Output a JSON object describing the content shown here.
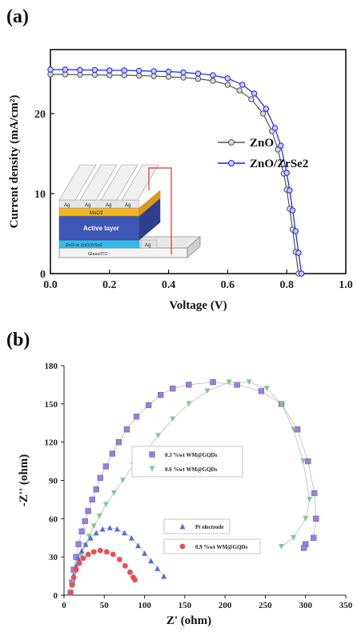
{
  "panel_a_label": "(a)",
  "panel_b_label": "(b)",
  "colors": {
    "zno": "#555555",
    "znozrse2": "#1a1aff",
    "purple": "#9a7fd8",
    "green": "#7ec98a",
    "blue": "#4a6fe0",
    "red": "#e85050"
  },
  "inset": {
    "ag": "Ag",
    "moo3": "MoO3",
    "active": "Active layer",
    "etl": "ZnO or ZnO/ZrSe2",
    "glass": "Glass/ITO"
  },
  "chart_data": [
    {
      "type": "line",
      "xlabel": "Voltage (V)",
      "ylabel": "Current density (mA/cm²)",
      "xlim": [
        0.0,
        1.0
      ],
      "ylim": [
        0,
        28
      ],
      "xticks": [
        "0.0",
        "0.2",
        "0.4",
        "0.6",
        "0.8",
        "1.0"
      ],
      "yticks": [
        "0",
        "10",
        "20"
      ],
      "series": [
        {
          "name": "ZnO",
          "color": "#555555",
          "x": [
            0.0,
            0.05,
            0.1,
            0.15,
            0.2,
            0.25,
            0.3,
            0.35,
            0.4,
            0.45,
            0.5,
            0.55,
            0.6,
            0.64,
            0.68,
            0.72,
            0.75,
            0.77,
            0.79,
            0.8,
            0.81,
            0.82,
            0.83,
            0.84
          ],
          "y": [
            24.9,
            24.9,
            24.85,
            24.85,
            24.8,
            24.8,
            24.75,
            24.7,
            24.6,
            24.5,
            24.35,
            24.1,
            23.6,
            22.9,
            21.8,
            20.0,
            17.8,
            15.5,
            12.5,
            10.5,
            8.1,
            5.5,
            2.7,
            0.0
          ]
        },
        {
          "name": "ZnO/ZrSe2",
          "color": "#1a1aff",
          "x": [
            0.0,
            0.05,
            0.1,
            0.15,
            0.2,
            0.25,
            0.3,
            0.35,
            0.4,
            0.45,
            0.5,
            0.55,
            0.6,
            0.65,
            0.69,
            0.73,
            0.76,
            0.78,
            0.8,
            0.81,
            0.82,
            0.83,
            0.84,
            0.85
          ],
          "y": [
            25.5,
            25.5,
            25.45,
            25.45,
            25.4,
            25.4,
            25.35,
            25.3,
            25.25,
            25.15,
            25.0,
            24.8,
            24.4,
            23.6,
            22.5,
            20.6,
            18.2,
            16.0,
            12.6,
            10.4,
            7.9,
            5.3,
            2.6,
            0.0
          ]
        }
      ],
      "legend": "upper-middle-right"
    },
    {
      "type": "scatter",
      "xlabel": "Z' (ohm)",
      "ylabel": "-Z'' (ohm)",
      "xlim": [
        0,
        350
      ],
      "ylim": [
        0,
        180
      ],
      "xticks": [
        "0",
        "50",
        "100",
        "150",
        "200",
        "250",
        "300",
        "350"
      ],
      "yticks": [
        "0",
        "30",
        "60",
        "90",
        "120",
        "150",
        "180"
      ],
      "series": [
        {
          "name": "0.3 %wt WM@GQDs",
          "color": "#9a7fd8",
          "marker": "square",
          "x": [
            8,
            10,
            12,
            15,
            18,
            22,
            26,
            30,
            35,
            40,
            45,
            52,
            60,
            68,
            78,
            90,
            105,
            120,
            135,
            155,
            185,
            215,
            245,
            270,
            290,
            303,
            311,
            313,
            310,
            300,
            298
          ],
          "y": [
            2,
            10,
            20,
            30,
            40,
            50,
            58,
            66,
            75,
            83,
            92,
            101,
            111,
            120,
            130,
            140,
            149,
            157,
            162,
            165,
            167,
            165,
            160,
            150,
            130,
            105,
            80,
            60,
            45,
            40,
            37
          ]
        },
        {
          "name": "0.6 %wt WM@GQDs",
          "color": "#7ec98a",
          "marker": "triangle-down",
          "x": [
            8,
            10,
            13,
            17,
            21,
            26,
            31,
            37,
            44,
            52,
            62,
            73,
            86,
            101,
            117,
            135,
            155,
            178,
            205,
            230,
            252,
            270,
            285,
            297,
            305,
            300,
            285,
            270
          ],
          "y": [
            2,
            8,
            16,
            24,
            31,
            39,
            46,
            54,
            62,
            71,
            80,
            90,
            102,
            113,
            125,
            138,
            150,
            160,
            167,
            167,
            162,
            150,
            130,
            105,
            75,
            60,
            45,
            38
          ]
        },
        {
          "name": "Pt electrode",
          "color": "#4a6fe0",
          "marker": "triangle-up",
          "x": [
            8,
            10,
            12,
            15,
            18,
            22,
            27,
            33,
            40,
            48,
            57,
            66,
            75,
            84,
            92,
            100,
            108,
            116,
            124
          ],
          "y": [
            2,
            9,
            16,
            23,
            29,
            35,
            40,
            45,
            49,
            52,
            53,
            52,
            49,
            45,
            39,
            33,
            27,
            21,
            15
          ]
        },
        {
          "name": "0.9 %wt WM@GQDs",
          "color": "#e85050",
          "marker": "circle",
          "x": [
            8,
            10,
            12,
            15,
            19,
            24,
            30,
            37,
            45,
            53,
            61,
            69,
            76,
            82,
            86,
            88
          ],
          "y": [
            2,
            8,
            14,
            20,
            25,
            29,
            32,
            34,
            35,
            34,
            32,
            28,
            23,
            18,
            14,
            12
          ]
        }
      ],
      "legend": "center-right"
    }
  ]
}
